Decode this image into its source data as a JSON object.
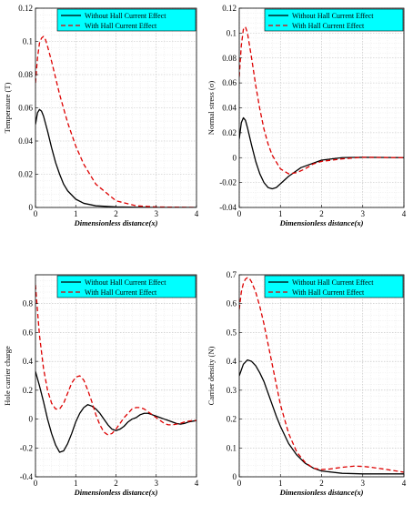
{
  "figure": {
    "legend_background": "#00ffff",
    "series_colors": {
      "without": "#000000",
      "with": "#dd0000"
    }
  },
  "chart_data": [
    {
      "type": "line",
      "title": "",
      "xlabel": "Dimensionless distance(x)",
      "ylabel": "Temperature (T)",
      "xlim": [
        0,
        4
      ],
      "ylim": [
        0,
        0.12
      ],
      "xticks": [
        0,
        1,
        2,
        3,
        4
      ],
      "xtick_labels": [
        "0",
        "1",
        "2",
        "3",
        "4"
      ],
      "yticks": [
        0,
        0.02,
        0.04,
        0.06,
        0.08,
        0.1,
        0.12
      ],
      "ytick_labels": [
        "0",
        "0.02",
        "0.04",
        "0.06",
        "0.08",
        "0.1",
        "0.12"
      ],
      "grid": true,
      "legend_position": "top-right",
      "series": [
        {
          "name": "Without Hall Current Effect",
          "style": "solid",
          "color": "#000000",
          "x": [
            0,
            0.05,
            0.1,
            0.15,
            0.2,
            0.3,
            0.4,
            0.5,
            0.6,
            0.7,
            0.8,
            1.0,
            1.2,
            1.5,
            2.0,
            2.5,
            3.0,
            4.0
          ],
          "y": [
            0.05,
            0.057,
            0.059,
            0.058,
            0.055,
            0.046,
            0.036,
            0.027,
            0.02,
            0.014,
            0.01,
            0.005,
            0.0025,
            0.001,
            0.0003,
            0.0001,
            0,
            0
          ]
        },
        {
          "name": "With Hall Current Effect",
          "style": "dashed",
          "color": "#dd0000",
          "x": [
            0,
            0.05,
            0.1,
            0.15,
            0.2,
            0.25,
            0.3,
            0.4,
            0.5,
            0.6,
            0.8,
            1.0,
            1.2,
            1.5,
            2.0,
            2.5,
            3.0,
            4.0
          ],
          "y": [
            0.075,
            0.09,
            0.099,
            0.102,
            0.103,
            0.101,
            0.097,
            0.088,
            0.078,
            0.068,
            0.051,
            0.037,
            0.026,
            0.014,
            0.004,
            0.001,
            0.0003,
            0
          ]
        }
      ]
    },
    {
      "type": "line",
      "title": "",
      "xlabel": "Dimensionless distance(x)",
      "ylabel": "Normal stress (σ)",
      "xlim": [
        0,
        4
      ],
      "ylim": [
        -0.04,
        0.12
      ],
      "xticks": [
        0,
        1,
        2,
        3,
        4
      ],
      "xtick_labels": [
        "0",
        "1",
        "2",
        "3",
        "4"
      ],
      "yticks": [
        -0.04,
        -0.02,
        0,
        0.02,
        0.04,
        0.06,
        0.08,
        0.1,
        0.12
      ],
      "ytick_labels": [
        "-0.04",
        "-0.02",
        "0",
        "0.02",
        "0.04",
        "0.06",
        "0.08",
        "0.1",
        "0.12"
      ],
      "grid": true,
      "legend_position": "top-right",
      "series": [
        {
          "name": "Without Hall Current Effect",
          "style": "solid",
          "color": "#000000",
          "x": [
            0,
            0.05,
            0.1,
            0.15,
            0.2,
            0.3,
            0.4,
            0.5,
            0.6,
            0.7,
            0.8,
            0.9,
            1.0,
            1.2,
            1.5,
            2.0,
            2.5,
            3.0,
            4.0
          ],
          "y": [
            0.015,
            0.028,
            0.032,
            0.03,
            0.024,
            0.01,
            -0.003,
            -0.013,
            -0.02,
            -0.024,
            -0.025,
            -0.024,
            -0.021,
            -0.015,
            -0.008,
            -0.002,
            0.0,
            0.0003,
            0
          ]
        },
        {
          "name": "With Hall Current Effect",
          "style": "dashed",
          "color": "#dd0000",
          "x": [
            0,
            0.05,
            0.1,
            0.15,
            0.2,
            0.3,
            0.4,
            0.5,
            0.6,
            0.7,
            0.8,
            1.0,
            1.2,
            1.4,
            1.6,
            1.8,
            2.0,
            2.5,
            3.0,
            4.0
          ],
          "y": [
            0.065,
            0.09,
            0.103,
            0.105,
            0.1,
            0.08,
            0.058,
            0.039,
            0.023,
            0.011,
            0.002,
            -0.009,
            -0.013,
            -0.012,
            -0.009,
            -0.005,
            -0.003,
            -0.001,
            0.0003,
            0
          ]
        }
      ]
    },
    {
      "type": "line",
      "title": "",
      "xlabel": "Dimensionless distance(x)",
      "ylabel": "Hole carrier charge",
      "xlim": [
        0,
        4
      ],
      "ylim": [
        -0.4,
        1.0
      ],
      "xticks": [
        0,
        1,
        2,
        3,
        4
      ],
      "xtick_labels": [
        "0",
        "1",
        "2",
        "3",
        "4"
      ],
      "yticks": [
        -0.4,
        -0.2,
        0,
        0.2,
        0.4,
        0.6,
        0.8
      ],
      "ytick_labels": [
        "-0.4",
        "-0.2",
        "0",
        "0.2",
        "0.4",
        "0.6",
        "0.8"
      ],
      "grid": true,
      "legend_position": "top-right",
      "series": [
        {
          "name": "Without Hall Current Effect",
          "style": "solid",
          "color": "#000000",
          "x": [
            0,
            0.1,
            0.2,
            0.3,
            0.4,
            0.5,
            0.6,
            0.7,
            0.8,
            0.9,
            1.0,
            1.1,
            1.2,
            1.3,
            1.4,
            1.5,
            1.6,
            1.7,
            1.8,
            1.9,
            2.0,
            2.1,
            2.2,
            2.3,
            2.4,
            2.5,
            2.6,
            2.7,
            2.8,
            2.9,
            3.0,
            3.1,
            3.2,
            3.3,
            3.4,
            3.5,
            3.6,
            3.7,
            3.8,
            3.9,
            4.0
          ],
          "y": [
            0.33,
            0.23,
            0.12,
            0.0,
            -0.1,
            -0.18,
            -0.23,
            -0.22,
            -0.17,
            -0.1,
            -0.02,
            0.04,
            0.08,
            0.1,
            0.09,
            0.07,
            0.04,
            0.0,
            -0.04,
            -0.07,
            -0.08,
            -0.07,
            -0.05,
            -0.02,
            0.0,
            0.01,
            0.03,
            0.04,
            0.04,
            0.03,
            0.02,
            0.01,
            0.0,
            -0.01,
            -0.02,
            -0.03,
            -0.035,
            -0.03,
            -0.02,
            -0.015,
            -0.01
          ]
        },
        {
          "name": "With Hall Current Effect",
          "style": "dashed",
          "color": "#dd0000",
          "x": [
            0,
            0.05,
            0.1,
            0.2,
            0.3,
            0.4,
            0.5,
            0.6,
            0.7,
            0.8,
            0.9,
            1.0,
            1.1,
            1.2,
            1.3,
            1.4,
            1.5,
            1.6,
            1.7,
            1.8,
            1.9,
            2.0,
            2.1,
            2.2,
            2.3,
            2.4,
            2.5,
            2.6,
            2.7,
            2.8,
            2.9,
            3.0,
            3.1,
            3.2,
            3.3,
            3.4,
            3.5,
            3.6,
            3.7,
            3.8,
            3.9,
            4.0
          ],
          "y": [
            0.93,
            0.75,
            0.58,
            0.35,
            0.2,
            0.11,
            0.07,
            0.07,
            0.11,
            0.18,
            0.25,
            0.29,
            0.3,
            0.27,
            0.2,
            0.12,
            0.03,
            -0.04,
            -0.09,
            -0.11,
            -0.1,
            -0.07,
            -0.03,
            0.01,
            0.04,
            0.07,
            0.08,
            0.08,
            0.07,
            0.05,
            0.03,
            0.01,
            -0.01,
            -0.03,
            -0.04,
            -0.04,
            -0.035,
            -0.03,
            -0.02,
            -0.015,
            -0.01,
            -0.01
          ]
        }
      ]
    },
    {
      "type": "line",
      "title": "",
      "xlabel": "Dimensionless distance(x)",
      "ylabel": "Carrier density (N)",
      "xlim": [
        0,
        4
      ],
      "ylim": [
        0,
        0.7
      ],
      "xticks": [
        0,
        1,
        2,
        3,
        4
      ],
      "xtick_labels": [
        "0",
        "1",
        "2",
        "3",
        "4"
      ],
      "yticks": [
        0,
        0.1,
        0.2,
        0.3,
        0.4,
        0.5,
        0.6,
        0.7
      ],
      "ytick_labels": [
        "0",
        "0.1",
        "0.2",
        "0.3",
        "0.4",
        "0.5",
        "0.6",
        "0.7"
      ],
      "grid": true,
      "legend_position": "top-right",
      "series": [
        {
          "name": "Without Hall Current Effect",
          "style": "solid",
          "color": "#000000",
          "x": [
            0,
            0.1,
            0.2,
            0.3,
            0.4,
            0.5,
            0.6,
            0.7,
            0.8,
            0.9,
            1.0,
            1.2,
            1.4,
            1.6,
            1.8,
            2.0,
            2.5,
            3.0,
            3.5,
            4.0
          ],
          "y": [
            0.35,
            0.39,
            0.405,
            0.4,
            0.385,
            0.36,
            0.33,
            0.29,
            0.25,
            0.21,
            0.175,
            0.115,
            0.075,
            0.047,
            0.03,
            0.02,
            0.012,
            0.01,
            0.01,
            0.01
          ]
        },
        {
          "name": "With Hall Current Effect",
          "style": "dashed",
          "color": "#dd0000",
          "x": [
            0,
            0.05,
            0.1,
            0.15,
            0.2,
            0.25,
            0.3,
            0.4,
            0.5,
            0.6,
            0.7,
            0.8,
            0.9,
            1.0,
            1.2,
            1.4,
            1.6,
            1.8,
            2.0,
            2.2,
            2.5,
            2.8,
            3.0,
            3.2,
            3.5,
            4.0
          ],
          "y": [
            0.58,
            0.64,
            0.67,
            0.685,
            0.69,
            0.687,
            0.675,
            0.64,
            0.59,
            0.53,
            0.46,
            0.39,
            0.32,
            0.25,
            0.15,
            0.085,
            0.05,
            0.03,
            0.025,
            0.027,
            0.033,
            0.037,
            0.036,
            0.033,
            0.027,
            0.016
          ]
        }
      ]
    }
  ]
}
